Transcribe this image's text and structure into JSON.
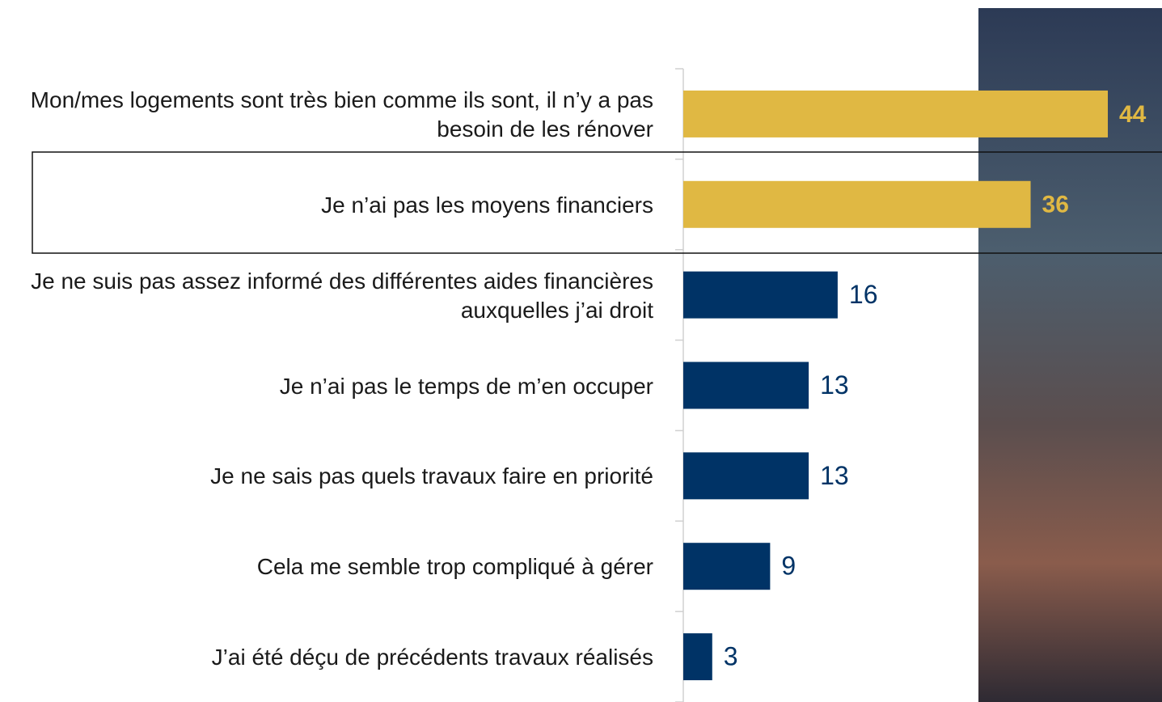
{
  "chart_data": {
    "type": "bar",
    "orientation": "horizontal",
    "categories": [
      "Mon/mes logements sont très bien comme ils sont, il n’y a pas besoin de les rénover",
      "Je n’ai pas les moyens financiers",
      "Je ne suis pas assez informé des différentes aides financières auxquelles j’ai droit",
      "Je n’ai pas le temps de m’en occuper",
      "Je ne sais pas quels travaux faire en priorité",
      "Cela me semble trop compliqué à gérer",
      "J’ai été déçu de précédents travaux réalisés"
    ],
    "values": [
      44,
      36,
      16,
      13,
      13,
      9,
      3
    ],
    "color": "#003366",
    "highlight_color": "#e0b843",
    "highlighted": [
      0,
      1
    ],
    "xlim": [
      0,
      44
    ]
  }
}
